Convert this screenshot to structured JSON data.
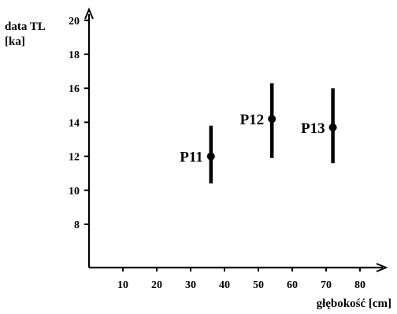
{
  "chart_data": {
    "type": "scatter",
    "xlabel": "głębokość [cm]",
    "ylabel_lines": [
      "data TL",
      "[ka]"
    ],
    "x_ticks": [
      10,
      20,
      30,
      40,
      50,
      60,
      70,
      80
    ],
    "y_ticks": [
      8,
      10,
      12,
      14,
      16,
      18,
      20
    ],
    "xlim": [
      0,
      87
    ],
    "ylim": [
      5.5,
      21.5
    ],
    "grid": false,
    "legend": "none",
    "points": [
      {
        "label": "P11",
        "x": 36,
        "y": 12.0,
        "y_low": 10.4,
        "y_high": 13.8
      },
      {
        "label": "P12",
        "x": 54,
        "y": 14.2,
        "y_low": 11.9,
        "y_high": 16.3
      },
      {
        "label": "P13",
        "x": 72,
        "y": 13.7,
        "y_low": 11.6,
        "y_high": 16.0
      }
    ],
    "colors": {
      "ink": "#000000",
      "background": "#ffffff"
    }
  }
}
